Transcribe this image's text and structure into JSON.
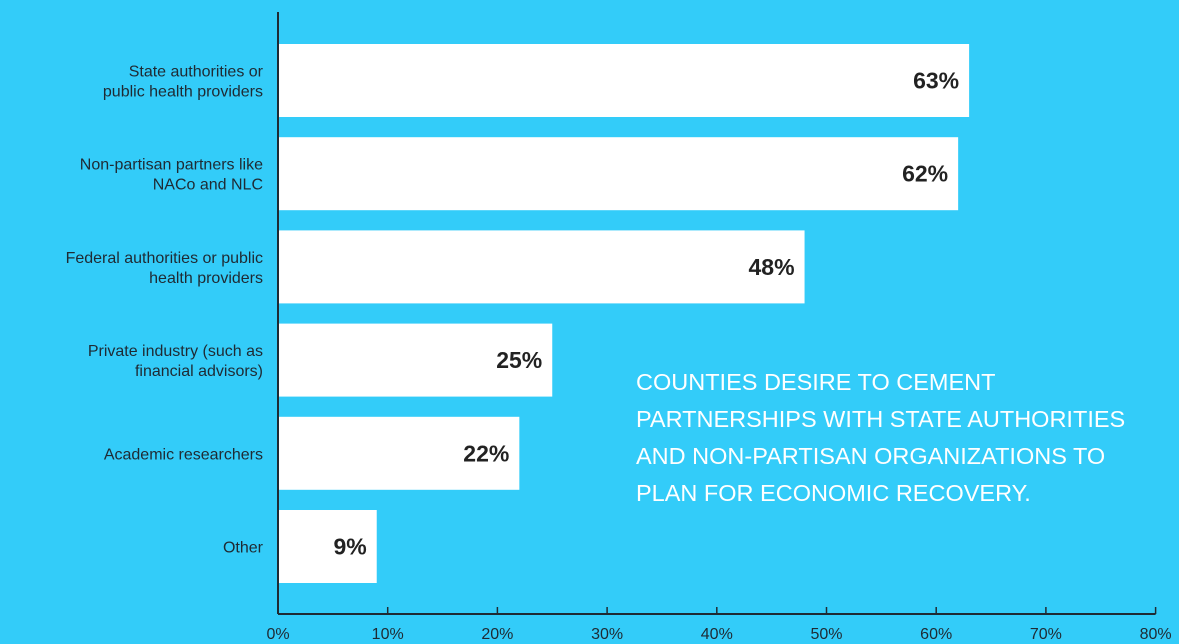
{
  "chart_data": {
    "type": "bar",
    "orientation": "horizontal",
    "categories": [
      [
        "State authorities or",
        "public health providers"
      ],
      [
        "Non-partisan partners like",
        "NACo and NLC"
      ],
      [
        "Federal authorities or public",
        "health providers"
      ],
      [
        "Private industry (such as",
        "financial advisors)"
      ],
      [
        "Academic researchers"
      ],
      [
        "Other"
      ]
    ],
    "values": [
      63,
      62,
      48,
      25,
      22,
      9
    ],
    "data_labels": [
      "63%",
      "62%",
      "48%",
      "25%",
      "22%",
      "9%"
    ],
    "xlim": [
      0,
      80
    ],
    "x_ticks": [
      0,
      10,
      20,
      30,
      40,
      50,
      60,
      70,
      80
    ],
    "x_tick_labels": [
      "0%",
      "10%",
      "20%",
      "30%",
      "40%",
      "50%",
      "60%",
      "70%",
      "80%"
    ],
    "grid": false,
    "colors": {
      "background": "#33ccf9",
      "bar": "#ffffff",
      "axis": "#1f2a33",
      "data_label": "#222222",
      "callout_text": "#ffffff"
    }
  },
  "callout": {
    "lines": [
      "COUNTIES DESIRE TO CEMENT",
      "PARTNERSHIPS WITH STATE AUTHORITIES",
      "AND NON-PARTISAN ORGANIZATIONS TO",
      "PLAN FOR ECONOMIC RECOVERY."
    ]
  }
}
